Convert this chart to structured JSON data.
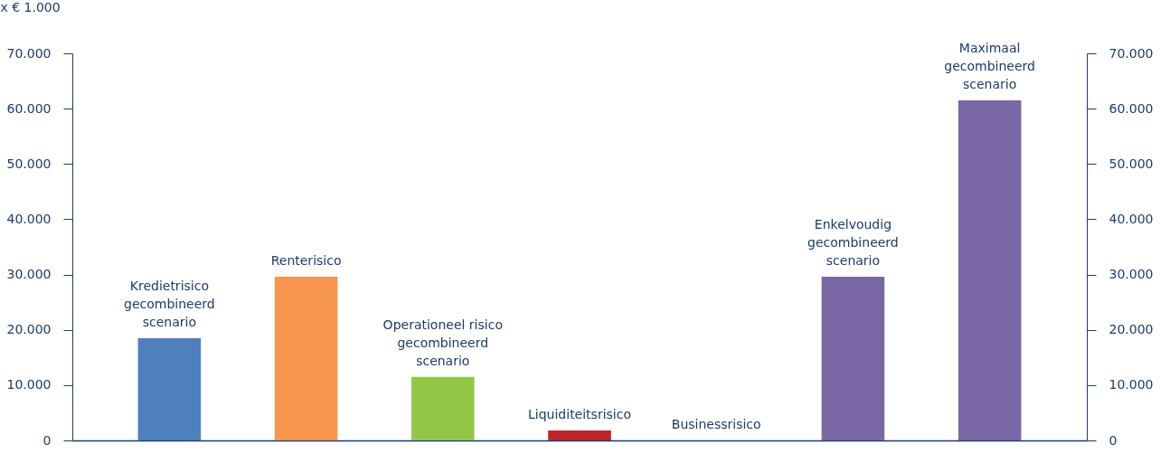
{
  "chart_data": {
    "type": "bar",
    "ylabel": "x € 1.000",
    "categories": [
      "Kredietrisico\ngecombineerd\nscenario",
      "Renterisico",
      "Operationeel risico\ngecombineerd\nscenario",
      "Liquiditeitsrisico",
      "Businessrisico",
      "Enkelvoudig\ngecombineerd\nscenario",
      "Maximaal\ngecombineerd\nscenario"
    ],
    "values": [
      18500,
      29600,
      11500,
      1800,
      0,
      29600,
      61500
    ],
    "colors": [
      "#4d80bd",
      "#f6954e",
      "#92c648",
      "#be2229",
      "#7a67a5",
      "#7a67a5",
      "#7a67a5"
    ],
    "ylim": [
      0,
      70000
    ],
    "yticks": [
      {
        "value": 0,
        "label": "0"
      },
      {
        "value": 10000,
        "label": "10.000"
      },
      {
        "value": 20000,
        "label": "20.000"
      },
      {
        "value": 30000,
        "label": "30.000"
      },
      {
        "value": 40000,
        "label": "40.000"
      },
      {
        "value": 50000,
        "label": "50.000"
      },
      {
        "value": 60000,
        "label": "60.000"
      },
      {
        "value": 70000,
        "label": "70.000"
      }
    ],
    "y2lim": [
      0,
      70000
    ],
    "y2ticks": [
      {
        "value": 0,
        "label": "0"
      },
      {
        "value": 10000,
        "label": "10.000"
      },
      {
        "value": 20000,
        "label": "20.000"
      },
      {
        "value": 30000,
        "label": "30.000"
      },
      {
        "value": 40000,
        "label": "40.000"
      },
      {
        "value": 50000,
        "label": "50.000"
      },
      {
        "value": 60000,
        "label": "60.000"
      },
      {
        "value": 70000,
        "label": "70.000"
      }
    ],
    "grid": false
  }
}
